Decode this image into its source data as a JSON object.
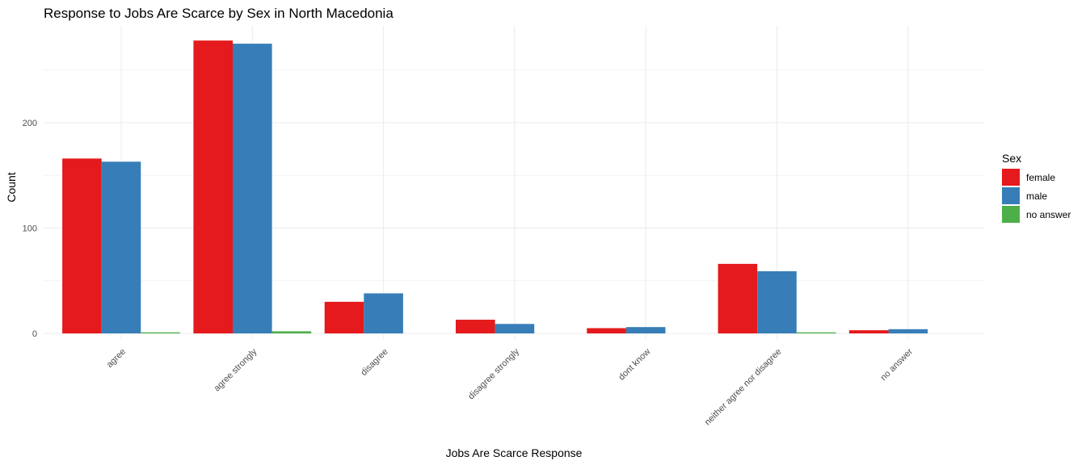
{
  "chart_data": {
    "type": "bar",
    "title": "Response to Jobs Are Scarce by Sex in North Macedonia",
    "xlabel": "Jobs Are Scarce Response",
    "ylabel": "Count",
    "categories": [
      "agree",
      "agree strongly",
      "disagree",
      "disagree strongly",
      "dont know",
      "neither agree nor disagree",
      "no answer"
    ],
    "series": [
      {
        "name": "female",
        "values": [
          166,
          278,
          30,
          13,
          5,
          66,
          3
        ]
      },
      {
        "name": "male",
        "values": [
          163,
          275,
          38,
          9,
          6,
          59,
          4
        ]
      },
      {
        "name": "no answer",
        "values": [
          1,
          2,
          0,
          0,
          0,
          1,
          0
        ]
      }
    ],
    "ylim": [
      0,
      290
    ],
    "yticks": [
      0,
      100,
      200
    ],
    "legend_title": "Sex",
    "legend_position": "right",
    "grid": true,
    "colors": {
      "female": "#e41a1c",
      "male": "#377eb8",
      "no answer": "#4daf4a"
    }
  }
}
